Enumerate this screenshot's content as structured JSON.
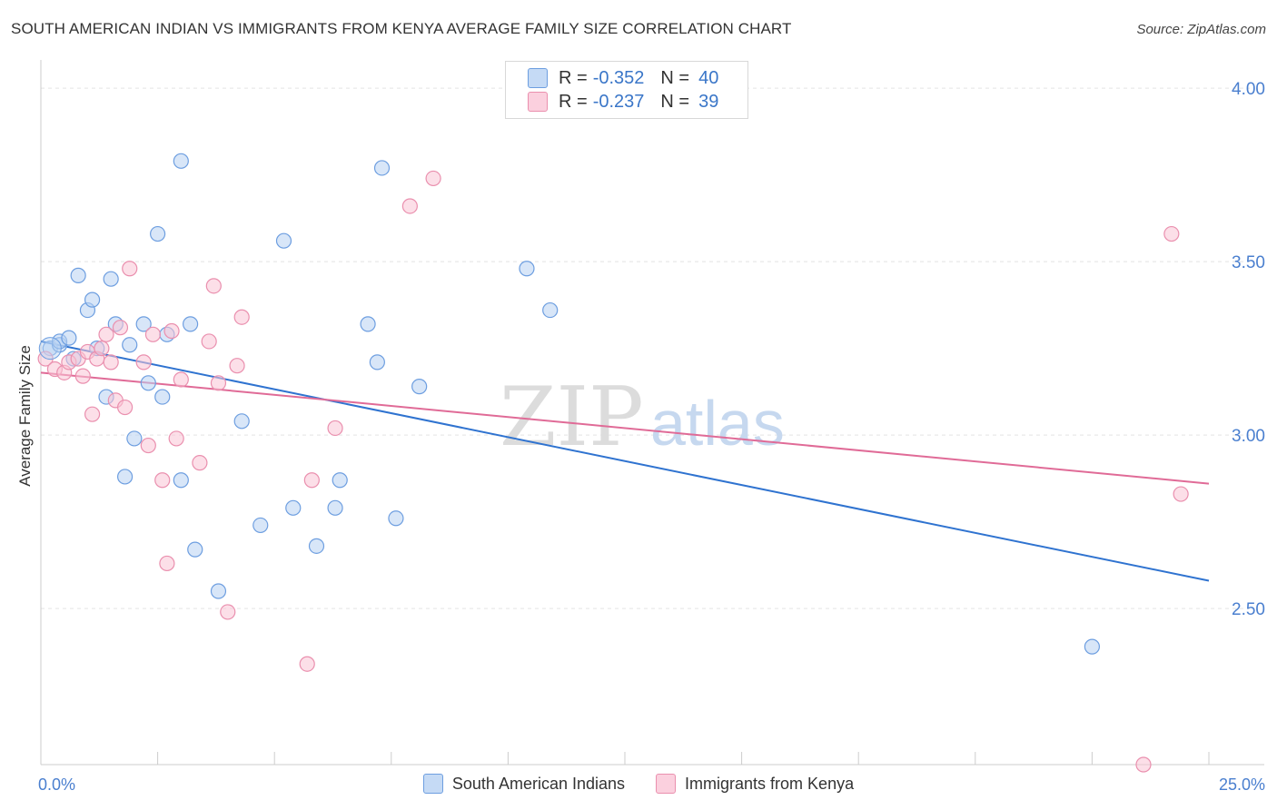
{
  "title": "SOUTH AMERICAN INDIAN VS IMMIGRANTS FROM KENYA AVERAGE FAMILY SIZE CORRELATION CHART",
  "source": "Source: ZipAtlas.com",
  "watermark": {
    "zip": "ZIP",
    "atlas": "atlas"
  },
  "colors": {
    "blue_fill": "#b8d2f2",
    "blue_stroke": "#6d9ee0",
    "blue_line": "#2f73d0",
    "pink_fill": "#f9c4d5",
    "pink_stroke": "#ea8fae",
    "pink_line": "#e06b97",
    "axis_text": "#4a7fcf",
    "grid": "#e3e3e3"
  },
  "stats_box": {
    "series1": {
      "r_label": "R =",
      "r_value": "-0.352",
      "n_label": "N =",
      "n_value": "40"
    },
    "series2": {
      "r_label": "R =",
      "r_value": "-0.237",
      "n_label": "N =",
      "n_value": "39"
    }
  },
  "legend": {
    "series1": "South American Indians",
    "series2": "Immigrants from Kenya"
  },
  "chart_data": {
    "type": "scatter",
    "title": "SOUTH AMERICAN INDIAN VS IMMIGRANTS FROM KENYA AVERAGE FAMILY SIZE CORRELATION CHART",
    "xlabel": "",
    "ylabel": "Average Family Size",
    "xlim": [
      0,
      25
    ],
    "ylim": [
      2.05,
      4.05
    ],
    "x_tick_labels": [
      "0.0%",
      "25.0%"
    ],
    "y_ticks": [
      2.5,
      3.0,
      3.5,
      4.0
    ],
    "y_tick_labels": [
      "2.50",
      "3.00",
      "3.50",
      "4.00"
    ],
    "grid": true,
    "series": [
      {
        "name": "South American Indians",
        "color": "blue",
        "trend": {
          "x": [
            0,
            25
          ],
          "y": [
            3.27,
            2.58
          ]
        },
        "points": [
          [
            0.2,
            3.25
          ],
          [
            0.4,
            3.26
          ],
          [
            0.4,
            3.27
          ],
          [
            0.6,
            3.28
          ],
          [
            0.7,
            3.22
          ],
          [
            0.8,
            3.46
          ],
          [
            1.0,
            3.36
          ],
          [
            1.1,
            3.39
          ],
          [
            1.2,
            3.25
          ],
          [
            1.4,
            3.11
          ],
          [
            1.5,
            3.45
          ],
          [
            1.6,
            3.32
          ],
          [
            1.9,
            3.26
          ],
          [
            2.0,
            2.99
          ],
          [
            1.8,
            2.88
          ],
          [
            2.2,
            3.32
          ],
          [
            2.3,
            3.15
          ],
          [
            2.5,
            3.58
          ],
          [
            2.6,
            3.11
          ],
          [
            2.7,
            3.29
          ],
          [
            3.0,
            3.79
          ],
          [
            3.0,
            2.87
          ],
          [
            3.2,
            3.32
          ],
          [
            3.3,
            2.67
          ],
          [
            3.8,
            2.55
          ],
          [
            4.3,
            3.04
          ],
          [
            4.7,
            2.74
          ],
          [
            5.2,
            3.56
          ],
          [
            5.4,
            2.79
          ],
          [
            5.9,
            2.68
          ],
          [
            6.3,
            2.79
          ],
          [
            6.4,
            2.87
          ],
          [
            7.0,
            3.32
          ],
          [
            7.2,
            3.21
          ],
          [
            7.3,
            3.77
          ],
          [
            7.6,
            2.76
          ],
          [
            8.1,
            3.14
          ],
          [
            10.4,
            3.48
          ],
          [
            10.9,
            3.36
          ],
          [
            22.5,
            2.39
          ]
        ]
      },
      {
        "name": "Immigrants from Kenya",
        "color": "pink",
        "trend": {
          "x": [
            0,
            25
          ],
          "y": [
            3.18,
            2.86
          ]
        },
        "points": [
          [
            0.1,
            3.22
          ],
          [
            0.3,
            3.19
          ],
          [
            0.5,
            3.18
          ],
          [
            0.6,
            3.21
          ],
          [
            0.8,
            3.22
          ],
          [
            0.9,
            3.17
          ],
          [
            1.0,
            3.24
          ],
          [
            1.1,
            3.06
          ],
          [
            1.2,
            3.22
          ],
          [
            1.3,
            3.25
          ],
          [
            1.4,
            3.29
          ],
          [
            1.5,
            3.21
          ],
          [
            1.6,
            3.1
          ],
          [
            1.7,
            3.31
          ],
          [
            1.8,
            3.08
          ],
          [
            1.9,
            3.48
          ],
          [
            2.2,
            3.21
          ],
          [
            2.3,
            2.97
          ],
          [
            2.4,
            3.29
          ],
          [
            2.6,
            2.87
          ],
          [
            2.7,
            2.63
          ],
          [
            2.8,
            3.3
          ],
          [
            2.9,
            2.99
          ],
          [
            3.0,
            3.16
          ],
          [
            3.4,
            2.92
          ],
          [
            3.6,
            3.27
          ],
          [
            3.7,
            3.43
          ],
          [
            3.8,
            3.15
          ],
          [
            4.0,
            2.49
          ],
          [
            4.2,
            3.2
          ],
          [
            4.3,
            3.34
          ],
          [
            5.7,
            2.34
          ],
          [
            5.8,
            2.87
          ],
          [
            6.3,
            3.02
          ],
          [
            7.9,
            3.66
          ],
          [
            8.4,
            3.74
          ],
          [
            24.2,
            3.58
          ],
          [
            24.4,
            2.83
          ],
          [
            23.6,
            2.05
          ]
        ]
      }
    ]
  }
}
